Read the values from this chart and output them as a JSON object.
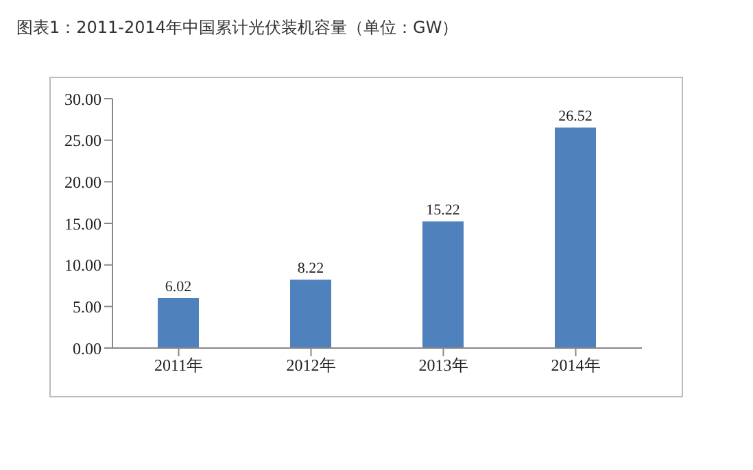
{
  "chart_data": {
    "type": "bar",
    "title": "图表1：2011-2014年中国累计光伏装机容量（单位：GW）",
    "categories": [
      "2011年",
      "2012年",
      "2013年",
      "2014年"
    ],
    "values": [
      6.02,
      8.22,
      15.22,
      26.52
    ],
    "color": "#4f81bd",
    "ylim": [
      0,
      30
    ],
    "yticks": [
      {
        "value": 0,
        "label": "0.00"
      },
      {
        "value": 5,
        "label": "5.00"
      },
      {
        "value": 10,
        "label": "10.00"
      },
      {
        "value": 15,
        "label": "15.00"
      },
      {
        "value": 20,
        "label": "20.00"
      },
      {
        "value": 25,
        "label": "25.00"
      },
      {
        "value": 30,
        "label": "30.00"
      }
    ],
    "data_labels": true,
    "grid": false
  }
}
